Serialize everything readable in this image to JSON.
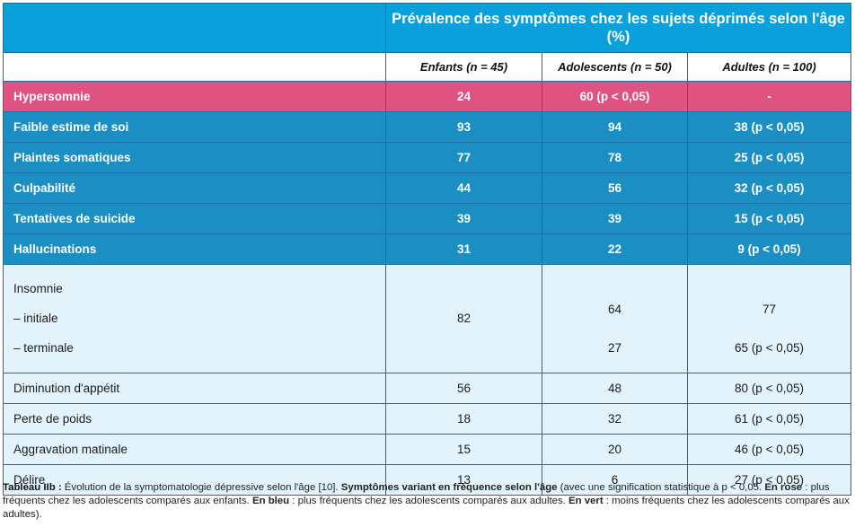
{
  "header": {
    "title": "Prévalence des symptômes chez les sujets déprimés selon l'âge (%)",
    "columns": [
      "Enfants (n = 45)",
      "Adolescents (n = 50)",
      "Adultes (n = 100)"
    ]
  },
  "rows": [
    {
      "label": "Hypersomnie",
      "values": [
        "24",
        "60 (p < 0,05)",
        "-"
      ]
    },
    {
      "label": "Faible estime de soi",
      "values": [
        "93",
        "94",
        "38 (p < 0,05)"
      ]
    },
    {
      "label": "Plaintes somatiques",
      "values": [
        "77",
        "78",
        "25 (p < 0,05)"
      ]
    },
    {
      "label": "Culpabilité",
      "values": [
        "44",
        "56",
        "32 (p < 0,05)"
      ]
    },
    {
      "label": "Tentatives de suicide",
      "values": [
        "39",
        "39",
        "15 (p < 0,05)"
      ]
    },
    {
      "label": "Hallucinations",
      "values": [
        "31",
        "22",
        "9 (p < 0,05)"
      ]
    },
    {
      "label": "Diminution d'appétit",
      "values": [
        "56",
        "48",
        "80 (p < 0,05)"
      ]
    },
    {
      "label": "Perte de poids",
      "values": [
        "18",
        "32",
        "61 (p < 0,05)"
      ]
    },
    {
      "label": "Aggravation matinale",
      "values": [
        "15",
        "20",
        "46 (p < 0,05)"
      ]
    },
    {
      "label": "Délire",
      "values": [
        "13",
        "6",
        "27 (p < 0,05)"
      ]
    }
  ],
  "insomnie": {
    "label": "Insomnie",
    "sub1": "– initiale",
    "sub2": "– terminale",
    "enfants": "82",
    "ado1": "64",
    "ado2": "27",
    "adu1": "77",
    "adu2": "65 (p < 0,05)"
  },
  "caption": {
    "title": "Tableau IIb :",
    "text1": " Évolution de la symptomatologie dépressive selon l'âge [10]. ",
    "bold1": "Symptômes variant en fréquence selon l'âge",
    "text2": " (avec une signification statistique à p < 0,05. ",
    "bold2": "En rose",
    "text3": " : plus fréquents chez les adolescents comparés aux enfants. ",
    "bold3": "En bleu",
    "text4": " : plus fréquents chez les adolescents comparés aux adultes. ",
    "bold4": "En vert",
    "text5": " : moins fréquents chez les adolescents comparés aux adultes)."
  },
  "colors": {
    "pink": "#e0527f",
    "blue": "#1b8fc4",
    "header": "#0aa0dc",
    "light": "#e3f3fb"
  }
}
